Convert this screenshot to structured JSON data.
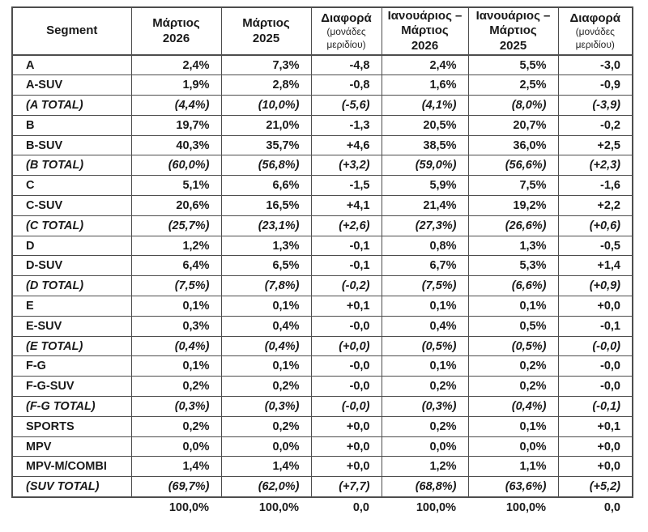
{
  "chart_data": {
    "type": "table",
    "columns": [
      {
        "label": "Segment",
        "sublabel": ""
      },
      {
        "label": "Μάρτιος\n2026",
        "sublabel": ""
      },
      {
        "label": "Μάρτιος\n2025",
        "sublabel": ""
      },
      {
        "label": "Διαφορά",
        "sublabel": "(μονάδες\nμεριδίου)"
      },
      {
        "label": "Ιανουάριος –\nΜάρτιος\n2026",
        "sublabel": ""
      },
      {
        "label": "Ιανουάριος –\nΜάρτιος\n2025",
        "sublabel": ""
      },
      {
        "label": "Διαφορά",
        "sublabel": "(μονάδες\nμεριδίου)"
      }
    ],
    "rows": [
      {
        "segment": "A",
        "values": [
          "2,4%",
          "7,3%",
          "-4,8",
          "2,4%",
          "5,5%",
          "-3,0"
        ],
        "is_total": false
      },
      {
        "segment": "A-SUV",
        "values": [
          "1,9%",
          "2,8%",
          "-0,8",
          "1,6%",
          "2,5%",
          "-0,9"
        ],
        "is_total": false
      },
      {
        "segment": "(A TOTAL)",
        "values": [
          "(4,4%)",
          "(10,0%)",
          "(-5,6)",
          "(4,1%)",
          "(8,0%)",
          "(-3,9)"
        ],
        "is_total": true
      },
      {
        "segment": "B",
        "values": [
          "19,7%",
          "21,0%",
          "-1,3",
          "20,5%",
          "20,7%",
          "-0,2"
        ],
        "is_total": false
      },
      {
        "segment": "B-SUV",
        "values": [
          "40,3%",
          "35,7%",
          "+4,6",
          "38,5%",
          "36,0%",
          "+2,5"
        ],
        "is_total": false
      },
      {
        "segment": "(B TOTAL)",
        "values": [
          "(60,0%)",
          "(56,8%)",
          "(+3,2)",
          "(59,0%)",
          "(56,6%)",
          "(+2,3)"
        ],
        "is_total": true
      },
      {
        "segment": "C",
        "values": [
          "5,1%",
          "6,6%",
          "-1,5",
          "5,9%",
          "7,5%",
          "-1,6"
        ],
        "is_total": false
      },
      {
        "segment": "C-SUV",
        "values": [
          "20,6%",
          "16,5%",
          "+4,1",
          "21,4%",
          "19,2%",
          "+2,2"
        ],
        "is_total": false
      },
      {
        "segment": "(C TOTAL)",
        "values": [
          "(25,7%)",
          "(23,1%)",
          "(+2,6)",
          "(27,3%)",
          "(26,6%)",
          "(+0,6)"
        ],
        "is_total": true
      },
      {
        "segment": "D",
        "values": [
          "1,2%",
          "1,3%",
          "-0,1",
          "0,8%",
          "1,3%",
          "-0,5"
        ],
        "is_total": false
      },
      {
        "segment": "D-SUV",
        "values": [
          "6,4%",
          "6,5%",
          "-0,1",
          "6,7%",
          "5,3%",
          "+1,4"
        ],
        "is_total": false
      },
      {
        "segment": "(D TOTAL)",
        "values": [
          "(7,5%)",
          "(7,8%)",
          "(-0,2)",
          "(7,5%)",
          "(6,6%)",
          "(+0,9)"
        ],
        "is_total": true
      },
      {
        "segment": "E",
        "values": [
          "0,1%",
          "0,1%",
          "+0,1",
          "0,1%",
          "0,1%",
          "+0,0"
        ],
        "is_total": false
      },
      {
        "segment": "E-SUV",
        "values": [
          "0,3%",
          "0,4%",
          "-0,0",
          "0,4%",
          "0,5%",
          "-0,1"
        ],
        "is_total": false
      },
      {
        "segment": "(E TOTAL)",
        "values": [
          "(0,4%)",
          "(0,4%)",
          "(+0,0)",
          "(0,5%)",
          "(0,5%)",
          "(-0,0)"
        ],
        "is_total": true
      },
      {
        "segment": "F-G",
        "values": [
          "0,1%",
          "0,1%",
          "-0,0",
          "0,1%",
          "0,2%",
          "-0,0"
        ],
        "is_total": false
      },
      {
        "segment": "F-G-SUV",
        "values": [
          "0,2%",
          "0,2%",
          "-0,0",
          "0,2%",
          "0,2%",
          "-0,0"
        ],
        "is_total": false
      },
      {
        "segment": "(F-G TOTAL)",
        "values": [
          "(0,3%)",
          "(0,3%)",
          "(-0,0)",
          "(0,3%)",
          "(0,4%)",
          "(-0,1)"
        ],
        "is_total": true
      },
      {
        "segment": "SPORTS",
        "values": [
          "0,2%",
          "0,2%",
          "+0,0",
          "0,2%",
          "0,1%",
          "+0,1"
        ],
        "is_total": false
      },
      {
        "segment": "MPV",
        "values": [
          "0,0%",
          "0,0%",
          "+0,0",
          "0,0%",
          "0,0%",
          "+0,0"
        ],
        "is_total": false
      },
      {
        "segment": "MPV-M/COMBI",
        "values": [
          "1,4%",
          "1,4%",
          "+0,0",
          "1,2%",
          "1,1%",
          "+0,0"
        ],
        "is_total": false
      },
      {
        "segment": "(SUV TOTAL)",
        "values": [
          "(69,7%)",
          "(62,0%)",
          "(+7,7)",
          "(68,8%)",
          "(63,6%)",
          "(+5,2)"
        ],
        "is_total": true
      }
    ],
    "grand_total_row": {
      "segment": "",
      "values": [
        "100,0%",
        "100,0%",
        "0,0",
        "100,0%",
        "100,0%",
        "0,0"
      ]
    },
    "colors": {
      "text": "#1a1a1a",
      "border": "#4d4d4d",
      "background": "#ffffff"
    }
  }
}
